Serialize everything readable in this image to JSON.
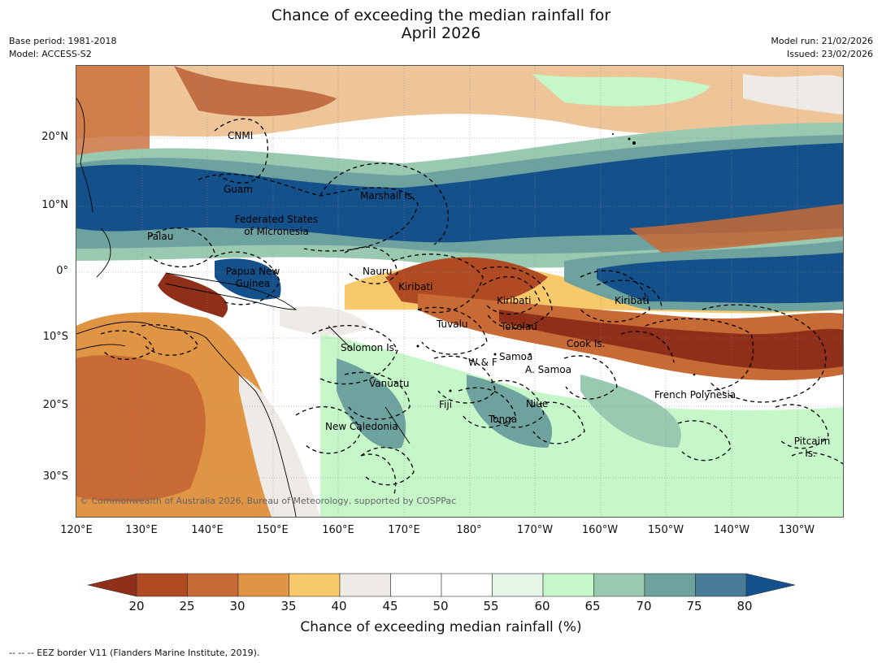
{
  "title": {
    "line1": "Chance of exceeding the median rainfall for",
    "line2": "April 2026"
  },
  "meta_left": {
    "base_period": "Base period: 1981-2018",
    "model": "Model: ACCESS-S2"
  },
  "meta_right": {
    "model_run": "Model run: 21/02/2026",
    "issued": "Issued: 23/02/2026"
  },
  "map": {
    "lat_ticks": [
      "20°N",
      "10°N",
      "0°",
      "10°S",
      "20°S",
      "30°S"
    ],
    "lon_ticks": [
      "120°E",
      "130°E",
      "140°E",
      "150°E",
      "160°E",
      "170°E",
      "180°",
      "170°W",
      "160°W",
      "150°W",
      "140°W",
      "130°W"
    ],
    "region_labels": [
      {
        "id": "cnmi",
        "text": "CNMI"
      },
      {
        "id": "guam",
        "text": "Guam"
      },
      {
        "id": "marshall",
        "text": "Marshall Is."
      },
      {
        "id": "fsm1",
        "text": "Federated States"
      },
      {
        "id": "fsm2",
        "text": "of Micronesia"
      },
      {
        "id": "palau",
        "text": "Palau"
      },
      {
        "id": "png1",
        "text": "Papua New"
      },
      {
        "id": "png2",
        "text": "Guinea"
      },
      {
        "id": "nauru",
        "text": "Nauru"
      },
      {
        "id": "kiribati-w",
        "text": "Kiribati"
      },
      {
        "id": "kiribati-c",
        "text": "Kiribati"
      },
      {
        "id": "kiribati-e",
        "text": "Kiribati"
      },
      {
        "id": "tuvalu",
        "text": "Tuvalu"
      },
      {
        "id": "tokelau",
        "text": "Tokelau"
      },
      {
        "id": "cook",
        "text": "Cook Is."
      },
      {
        "id": "solomon",
        "text": "Solomon Is."
      },
      {
        "id": "samoa",
        "text": "Samoa"
      },
      {
        "id": "wf",
        "text": "W & F"
      },
      {
        "id": "asamoa",
        "text": "A. Samoa"
      },
      {
        "id": "vanuatu",
        "text": "Vanuatu"
      },
      {
        "id": "fiji",
        "text": "Fiji"
      },
      {
        "id": "niue",
        "text": "Niue"
      },
      {
        "id": "frpoly",
        "text": "French Polynesia"
      },
      {
        "id": "tonga",
        "text": "Tonga"
      },
      {
        "id": "newcal",
        "text": "New Caledonia"
      },
      {
        "id": "pitcairn1",
        "text": "Pitcairn"
      },
      {
        "id": "pitcairn2",
        "text": "Is."
      }
    ],
    "copyright": "© Commonwealth of Australia 2026, Bureau of Meteorology, supported by COSPPac"
  },
  "colorbar": {
    "ticks": [
      "20",
      "25",
      "30",
      "35",
      "40",
      "45",
      "50",
      "55",
      "60",
      "65",
      "70",
      "75",
      "80"
    ],
    "colors": [
      "#8f2f1a",
      "#b04a22",
      "#c86a35",
      "#e09545",
      "#f8c96a",
      "#eeeae6",
      "#ffffff",
      "#ffffff",
      "#e6f6e6",
      "#c6f7c8",
      "#9ac9b2",
      "#6ea29f",
      "#477b98",
      "#14508a"
    ],
    "label": "Chance of exceeding median rainfall (%)"
  },
  "footnote": "--  --  -- EEZ border V11 (Flanders Marine Institute, 2019)."
}
